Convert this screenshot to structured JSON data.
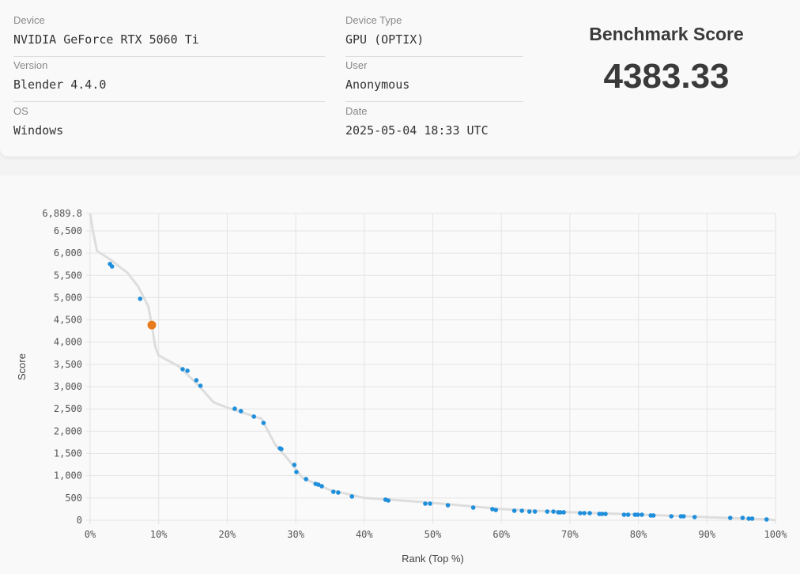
{
  "info": {
    "device": {
      "label": "Device",
      "value": "NVIDIA GeForce RTX 5060 Ti"
    },
    "version": {
      "label": "Version",
      "value": "Blender 4.4.0"
    },
    "os": {
      "label": "OS",
      "value": "Windows"
    },
    "device_type": {
      "label": "Device Type",
      "value": "GPU (OPTIX)"
    },
    "user": {
      "label": "User",
      "value": "Anonymous"
    },
    "date": {
      "label": "Date",
      "value": "2025-05-04 18:33 UTC"
    }
  },
  "score": {
    "title": "Benchmark Score",
    "value": "4383.33"
  },
  "chart_data": {
    "type": "scatter",
    "xlabel": "Rank (Top %)",
    "ylabel": "Score",
    "xlim": [
      0,
      100
    ],
    "ylim": [
      0,
      6889.8
    ],
    "x_ticks": [
      "0%",
      "10%",
      "20%",
      "30%",
      "40%",
      "50%",
      "60%",
      "70%",
      "80%",
      "90%",
      "100%"
    ],
    "y_ticks": [
      "0",
      "500",
      "1,000",
      "1,500",
      "2,000",
      "2,500",
      "3,000",
      "3,500",
      "4,000",
      "4,500",
      "5,000",
      "5,500",
      "6,000",
      "6,500",
      "6,889.8"
    ],
    "grid": true,
    "colors": {
      "points": "#1f8fdc",
      "highlight": "#e87b1c",
      "curve": "#dddddd"
    },
    "curve": [
      [
        0,
        6889.8
      ],
      [
        0.4,
        6500
      ],
      [
        1,
        6050
      ],
      [
        3,
        5850
      ],
      [
        5.5,
        5550
      ],
      [
        7,
        5250
      ],
      [
        8.5,
        4800
      ],
      [
        9,
        4383
      ],
      [
        9.5,
        3900
      ],
      [
        10,
        3700
      ],
      [
        13,
        3450
      ],
      [
        16,
        3000
      ],
      [
        18,
        2650
      ],
      [
        20,
        2530
      ],
      [
        25,
        2280
      ],
      [
        27,
        1700
      ],
      [
        29,
        1350
      ],
      [
        31,
        950
      ],
      [
        35,
        680
      ],
      [
        40,
        500
      ],
      [
        45,
        450
      ],
      [
        50,
        390
      ],
      [
        60,
        250
      ],
      [
        70,
        180
      ],
      [
        80,
        130
      ],
      [
        90,
        70
      ],
      [
        99,
        20
      ],
      [
        100,
        0
      ]
    ],
    "highlight": {
      "x": 9.0,
      "y": 4383.33
    },
    "points": [
      [
        2.9,
        5755
      ],
      [
        3.2,
        5700
      ],
      [
        7.3,
        4973
      ],
      [
        13.5,
        3393
      ],
      [
        14.2,
        3357
      ],
      [
        15.5,
        3144
      ],
      [
        16.1,
        3020
      ],
      [
        21.1,
        2504
      ],
      [
        22.0,
        2451
      ],
      [
        23.9,
        2327
      ],
      [
        25.3,
        2185
      ],
      [
        27.7,
        1616
      ],
      [
        27.9,
        1599
      ],
      [
        29.8,
        1243
      ],
      [
        30.1,
        1083
      ],
      [
        31.5,
        924
      ],
      [
        32.9,
        817
      ],
      [
        33.3,
        799
      ],
      [
        33.8,
        764
      ],
      [
        35.5,
        639
      ],
      [
        36.2,
        622
      ],
      [
        38.2,
        533
      ],
      [
        43.1,
        462
      ],
      [
        43.5,
        444
      ],
      [
        48.9,
        373
      ],
      [
        49.6,
        373
      ],
      [
        52.2,
        337
      ],
      [
        55.9,
        284
      ],
      [
        58.7,
        249
      ],
      [
        59.2,
        231
      ],
      [
        61.9,
        213
      ],
      [
        63.0,
        213
      ],
      [
        64.1,
        195
      ],
      [
        64.9,
        195
      ],
      [
        66.7,
        195
      ],
      [
        67.6,
        195
      ],
      [
        68.3,
        178
      ],
      [
        68.6,
        178
      ],
      [
        69.1,
        178
      ],
      [
        71.5,
        160
      ],
      [
        72.1,
        160
      ],
      [
        72.9,
        160
      ],
      [
        74.3,
        142
      ],
      [
        74.7,
        142
      ],
      [
        75.2,
        142
      ],
      [
        77.9,
        124
      ],
      [
        78.5,
        124
      ],
      [
        79.5,
        124
      ],
      [
        79.9,
        124
      ],
      [
        80.5,
        124
      ],
      [
        81.8,
        107
      ],
      [
        82.2,
        107
      ],
      [
        84.8,
        89
      ],
      [
        86.2,
        89
      ],
      [
        86.6,
        89
      ],
      [
        88.2,
        71
      ],
      [
        93.4,
        53
      ],
      [
        95.2,
        53
      ],
      [
        96.1,
        36
      ],
      [
        96.6,
        36
      ],
      [
        98.7,
        18
      ]
    ]
  }
}
